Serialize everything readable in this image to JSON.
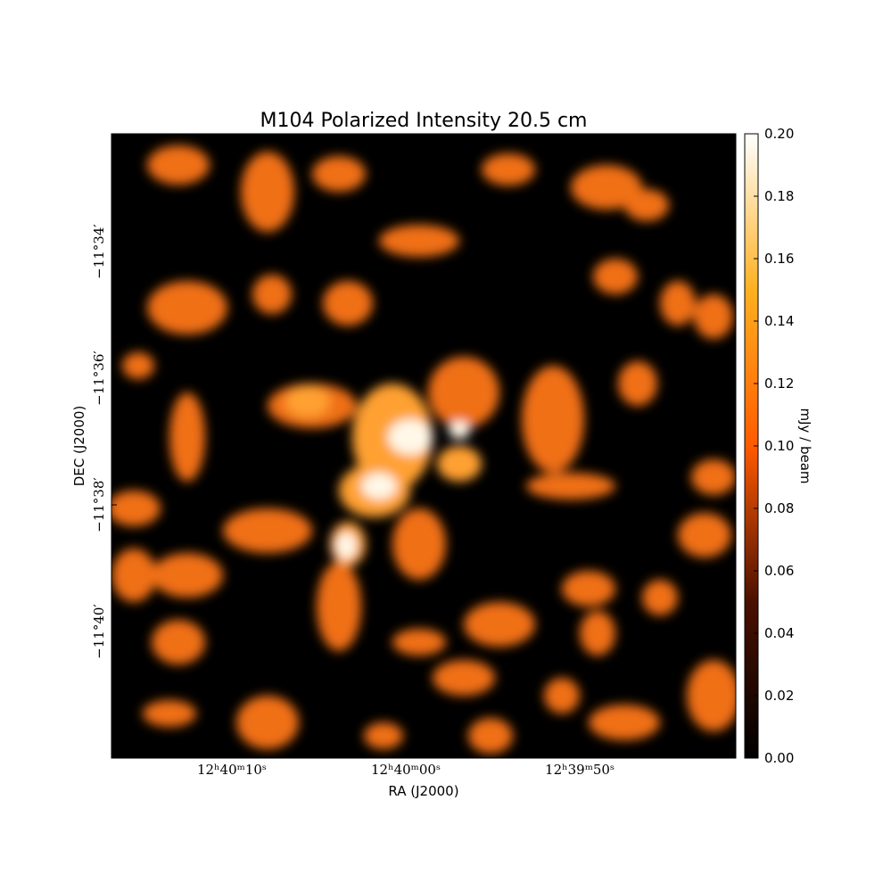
{
  "chart_data": {
    "type": "image",
    "title": "M104 Polarized Intensity 20.5 cm",
    "xlabel": "RA (J2000)",
    "ylabel": "DEC (J2000)",
    "xlim": [
      16.92,
      -18.97
    ],
    "xticks": [
      {
        "value": 10,
        "label": "12ʰ40ᵐ10ˢ"
      },
      {
        "value": 0,
        "label": "12ʰ40ᵐ00ˢ"
      },
      {
        "value": -10,
        "label": "12ʰ39ᵐ50ˢ"
      }
    ],
    "ylim": [
      -702,
      -692.14
    ],
    "yticks": [
      {
        "value": -694,
        "label": "−11°34′"
      },
      {
        "value": -696,
        "label": "−11°36′"
      },
      {
        "value": -698,
        "label": "−11°38′"
      },
      {
        "value": -700,
        "label": "−11°40′"
      }
    ],
    "colorbar_label": "mJy / beam",
    "clim": [
      0,
      0.2
    ],
    "cticks": [
      {
        "value": 0,
        "label": "0.00"
      },
      {
        "value": 0.02,
        "label": "0.02"
      },
      {
        "value": 0.04,
        "label": "0.04"
      },
      {
        "value": 0.06,
        "label": "0.06"
      },
      {
        "value": 0.08,
        "label": "0.08"
      },
      {
        "value": 0.1,
        "label": "0.10"
      },
      {
        "value": 0.12,
        "label": "0.12"
      },
      {
        "value": 0.14,
        "label": "0.14"
      },
      {
        "value": 0.16,
        "label": "0.16"
      },
      {
        "value": 0.18,
        "label": "0.18"
      },
      {
        "value": 0.2,
        "label": "0.20"
      }
    ]
  }
}
